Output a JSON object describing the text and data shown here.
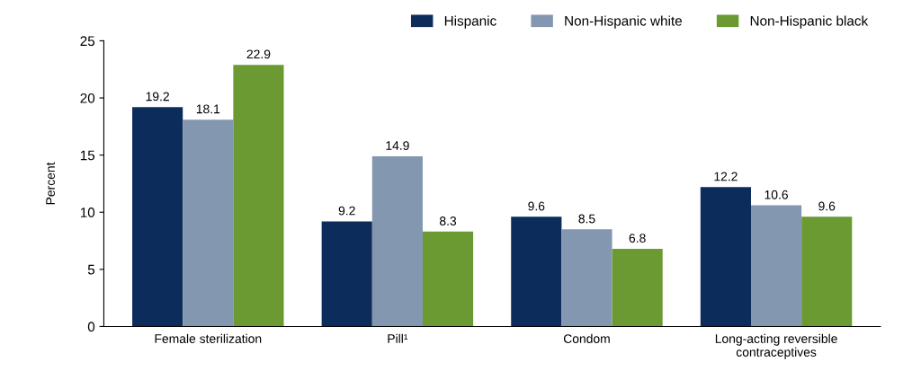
{
  "chart_data": {
    "type": "bar",
    "ylabel": "Percent",
    "categories": [
      "Female sterilization",
      "Pill¹",
      "Condom",
      "Long-acting reversible\ncontraceptives"
    ],
    "series": [
      {
        "name": "Hispanic",
        "color": "#0c2c5c",
        "values": [
          19.2,
          9.2,
          9.6,
          12.2
        ]
      },
      {
        "name": "Non-Hispanic white",
        "color": "#8497b0",
        "values": [
          18.1,
          14.9,
          8.5,
          10.6
        ]
      },
      {
        "name": "Non-Hispanic black",
        "color": "#6b9a32",
        "values": [
          22.9,
          8.3,
          6.8,
          9.6
        ]
      }
    ],
    "ylim": [
      0,
      25
    ],
    "yticks": [
      0,
      5,
      10,
      15,
      20,
      25
    ],
    "grid": false,
    "legend": "top right",
    "data_labels": true
  }
}
